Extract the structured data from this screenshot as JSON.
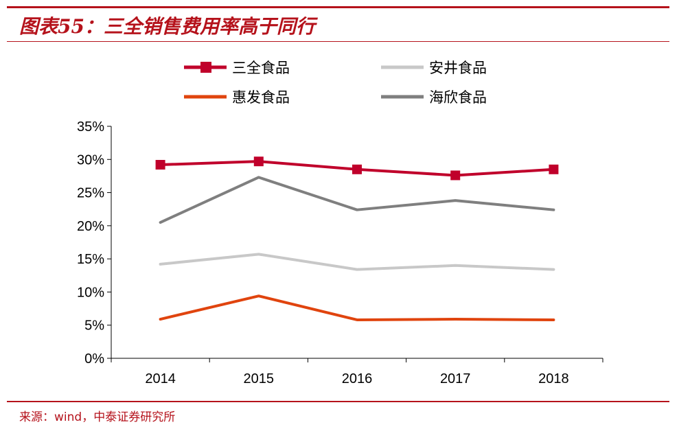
{
  "header": {
    "title": "图表55：三全销售费用率高于同行"
  },
  "footer": {
    "source": "来源：wind，中泰证券研究所"
  },
  "chart_data": {
    "type": "line",
    "title": "",
    "xlabel": "",
    "ylabel": "",
    "x": [
      "2014",
      "2015",
      "2016",
      "2017",
      "2018"
    ],
    "ylim": [
      0,
      0.35
    ],
    "yticks": [
      "0%",
      "5%",
      "10%",
      "15%",
      "20%",
      "25%",
      "30%",
      "35%"
    ],
    "grid": false,
    "legend_position": "top",
    "series": [
      {
        "name": "三全食品",
        "values": [
          0.292,
          0.297,
          0.285,
          0.276,
          0.285
        ],
        "color": "#c0002b",
        "marker": "square"
      },
      {
        "name": "安井食品",
        "values": [
          0.142,
          0.157,
          0.134,
          0.14,
          0.134
        ],
        "color": "#c8c8c8",
        "marker": "none"
      },
      {
        "name": "惠发食品",
        "values": [
          0.059,
          0.094,
          0.058,
          0.059,
          0.058
        ],
        "color": "#e0440e",
        "marker": "none"
      },
      {
        "name": "海欣食品",
        "values": [
          0.205,
          0.273,
          0.224,
          0.238,
          0.224
        ],
        "color": "#7f7f7f",
        "marker": "none"
      }
    ]
  }
}
